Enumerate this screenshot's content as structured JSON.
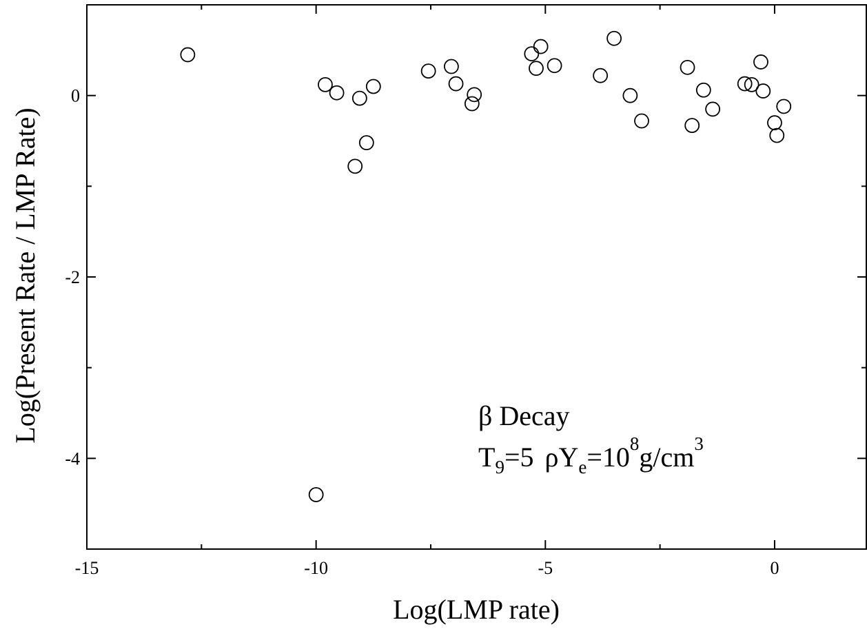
{
  "chart_data": {
    "type": "scatter",
    "xlabel": "Log(LMP rate)",
    "ylabel": "Log(Present Rate / LMP Rate)",
    "xlim": [
      -15,
      2
    ],
    "ylim": [
      -5,
      1
    ],
    "x_ticks": [
      -15,
      -10,
      -5,
      0
    ],
    "y_ticks": [
      0,
      -2,
      -4
    ],
    "x_tick_labels": [
      "-15",
      "-10",
      "-5",
      "0"
    ],
    "y_tick_labels": [
      "0",
      "-2",
      "-4"
    ],
    "marker": "open-circle",
    "grid": false,
    "series": [
      {
        "points": [
          [
            -12.8,
            0.45
          ],
          [
            -9.8,
            0.12
          ],
          [
            -9.55,
            0.03
          ],
          [
            -9.15,
            -0.78
          ],
          [
            -9.05,
            -0.03
          ],
          [
            -8.9,
            -0.52
          ],
          [
            -8.75,
            0.1
          ],
          [
            -10.0,
            -4.4
          ],
          [
            -7.55,
            0.27
          ],
          [
            -7.05,
            0.32
          ],
          [
            -6.95,
            0.13
          ],
          [
            -6.55,
            0.01
          ],
          [
            -6.6,
            -0.09
          ],
          [
            -5.3,
            0.46
          ],
          [
            -5.1,
            0.54
          ],
          [
            -5.2,
            0.3
          ],
          [
            -4.8,
            0.33
          ],
          [
            -3.8,
            0.22
          ],
          [
            -3.5,
            0.63
          ],
          [
            -3.15,
            0.0
          ],
          [
            -2.9,
            -0.28
          ],
          [
            -1.9,
            0.31
          ],
          [
            -1.8,
            -0.33
          ],
          [
            -1.55,
            0.06
          ],
          [
            -1.35,
            -0.15
          ],
          [
            -0.65,
            0.13
          ],
          [
            -0.5,
            0.12
          ],
          [
            -0.3,
            0.37
          ],
          [
            -0.25,
            0.05
          ],
          [
            0.0,
            -0.3
          ],
          [
            0.05,
            -0.44
          ],
          [
            0.2,
            -0.12
          ]
        ]
      }
    ],
    "annotation": {
      "line1": "β Decay",
      "t_main": "T",
      "t_sub": "9",
      "t_eq": "=5",
      "rho_main": "ρY",
      "rho_sub": "e",
      "rho_eq": "=10",
      "rho_sup": "8",
      "unit": "g/cm",
      "unit_sup": "3"
    }
  }
}
